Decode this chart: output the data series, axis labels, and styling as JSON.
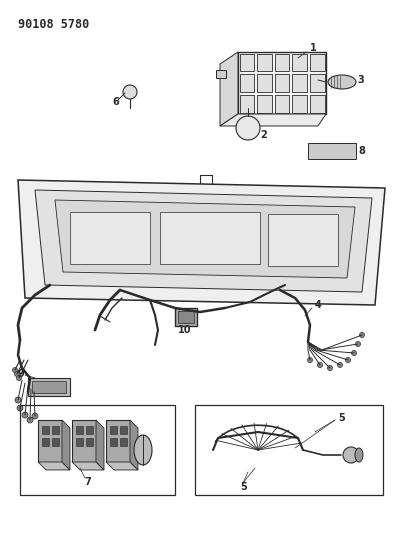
{
  "title_code": "90108 5780",
  "bg_color": "#ffffff",
  "line_color": "#2a2a2a",
  "fig_width": 3.99,
  "fig_height": 5.33,
  "dpi": 100
}
